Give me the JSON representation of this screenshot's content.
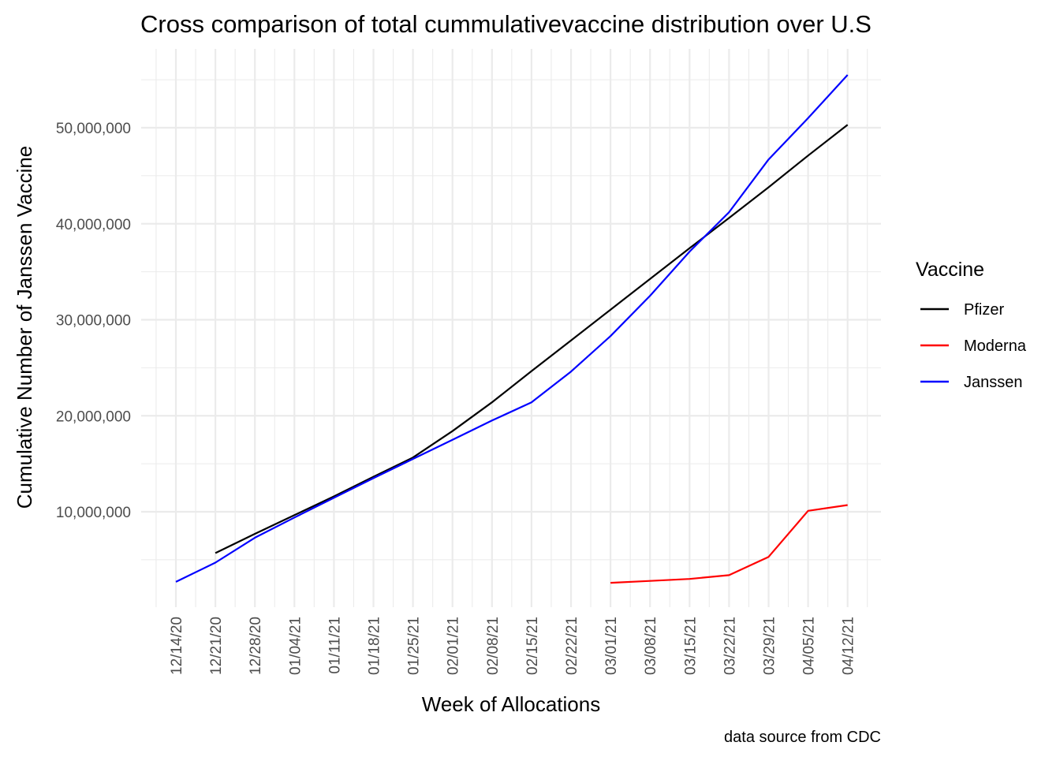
{
  "chart_data": {
    "type": "line",
    "title": "Cross comparison of total cummulativevaccine distribution over U.S",
    "xlabel": "Week of Allocations",
    "ylabel": "Cumulative Number of Janssen Vaccine",
    "caption": "data source from CDC",
    "categories": [
      "12/14/20",
      "12/21/20",
      "12/28/20",
      "01/04/21",
      "01/11/21",
      "01/18/21",
      "01/25/21",
      "02/01/21",
      "02/08/21",
      "02/15/21",
      "02/22/21",
      "03/01/21",
      "03/08/21",
      "03/15/21",
      "03/22/21",
      "03/29/21",
      "04/05/21",
      "04/12/21"
    ],
    "y_ticks": [
      10000000,
      20000000,
      30000000,
      40000000,
      50000000
    ],
    "y_tick_labels": [
      "10,000,000",
      "20,000,000",
      "30,000,000",
      "40,000,000",
      "50,000,000"
    ],
    "ylim": [
      0,
      58000000
    ],
    "grid": true,
    "legend": {
      "title": "Vaccine",
      "position": "right"
    },
    "series": [
      {
        "name": "Pfizer",
        "color": "#000000",
        "values": [
          null,
          5700000,
          7700000,
          9650000,
          11600000,
          13650000,
          15650000,
          18400000,
          21400000,
          24650000,
          27850000,
          31050000,
          34250000,
          37450000,
          40600000,
          43800000,
          47100000,
          50300000
        ]
      },
      {
        "name": "Moderna",
        "color": "#ff0000",
        "values": [
          null,
          null,
          null,
          null,
          null,
          null,
          null,
          null,
          null,
          null,
          null,
          2600000,
          2800000,
          3000000,
          3400000,
          5300000,
          10100000,
          10700000
        ]
      },
      {
        "name": "Janssen",
        "color": "#0000ff",
        "values": [
          2700000,
          4700000,
          7300000,
          9400000,
          11450000,
          13500000,
          15500000,
          17500000,
          19500000,
          21400000,
          24600000,
          28300000,
          32500000,
          37100000,
          41200000,
          46700000,
          51000000,
          55500000
        ]
      }
    ]
  }
}
